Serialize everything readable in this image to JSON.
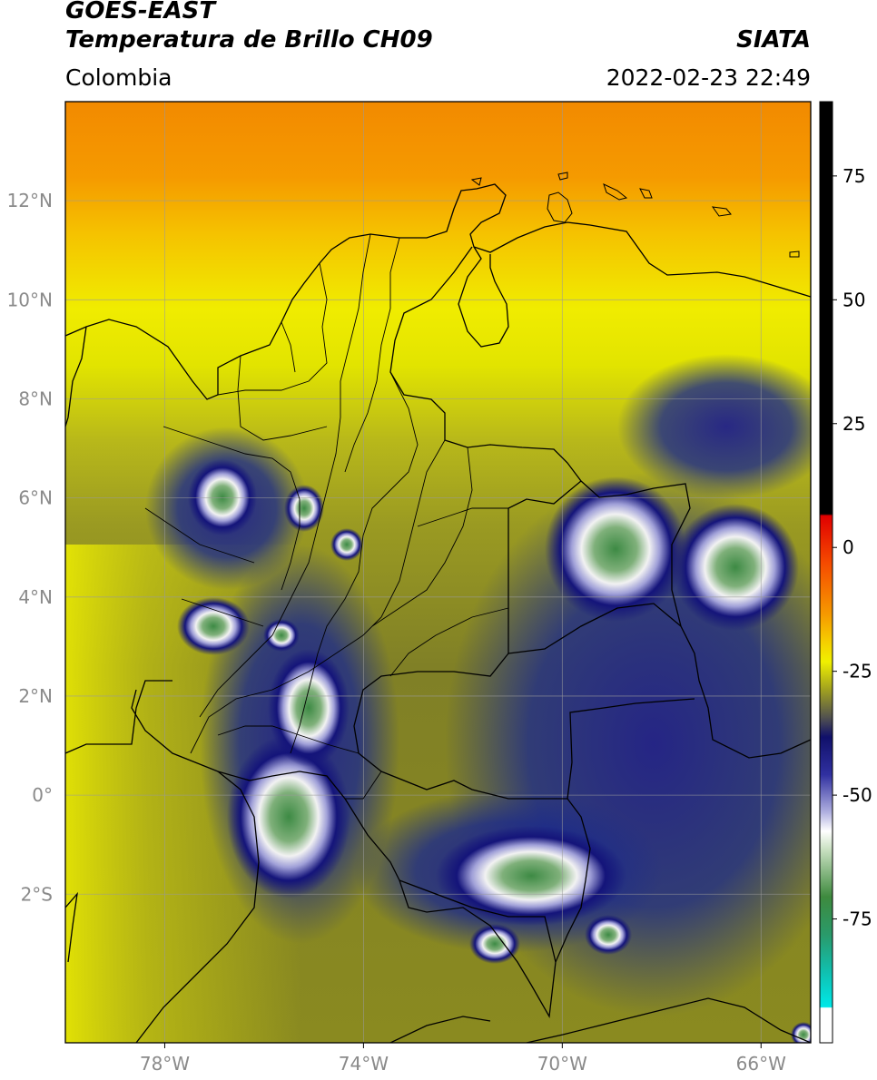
{
  "header": {
    "satellite": "GOES-EAST",
    "product": "Temperatura de Brillo CH09",
    "region": "Colombia",
    "agency": "SIATA",
    "timestamp": "2022-02-23 22:49"
  },
  "map": {
    "lon_range": [
      -80,
      -65
    ],
    "lat_range": [
      -5,
      14
    ],
    "lon_ticks": [
      -78,
      -74,
      -70,
      -66
    ],
    "lat_ticks": [
      12,
      10,
      8,
      6,
      4,
      2,
      0,
      -2
    ],
    "lon_tick_labels": [
      "78°W",
      "74°W",
      "70°W",
      "66°W"
    ],
    "lat_tick_labels": [
      "12°N",
      "10°N",
      "8°N",
      "6°N",
      "4°N",
      "2°N",
      "0°",
      "2°S"
    ],
    "grid": true,
    "background_colors": {
      "warm": "#f59a00",
      "mid": "#eef000",
      "cool": "#9a9a22",
      "cold": "#1c2a8a"
    }
  },
  "colorbar": {
    "range": [
      -100,
      90
    ],
    "ticks": [
      75,
      50,
      25,
      0,
      -25,
      -50,
      -75
    ],
    "tick_labels": [
      "75",
      "50",
      "25",
      "0",
      "-25",
      "-50",
      "-75"
    ],
    "colors": {
      "top": "#000000",
      "red": "#e00000",
      "orange": "#f59a00",
      "yellow": "#f0f000",
      "navy": "#14147a",
      "white": "#ffffff",
      "green": "#2f8a3a",
      "cyan": "#00e0e0"
    }
  }
}
